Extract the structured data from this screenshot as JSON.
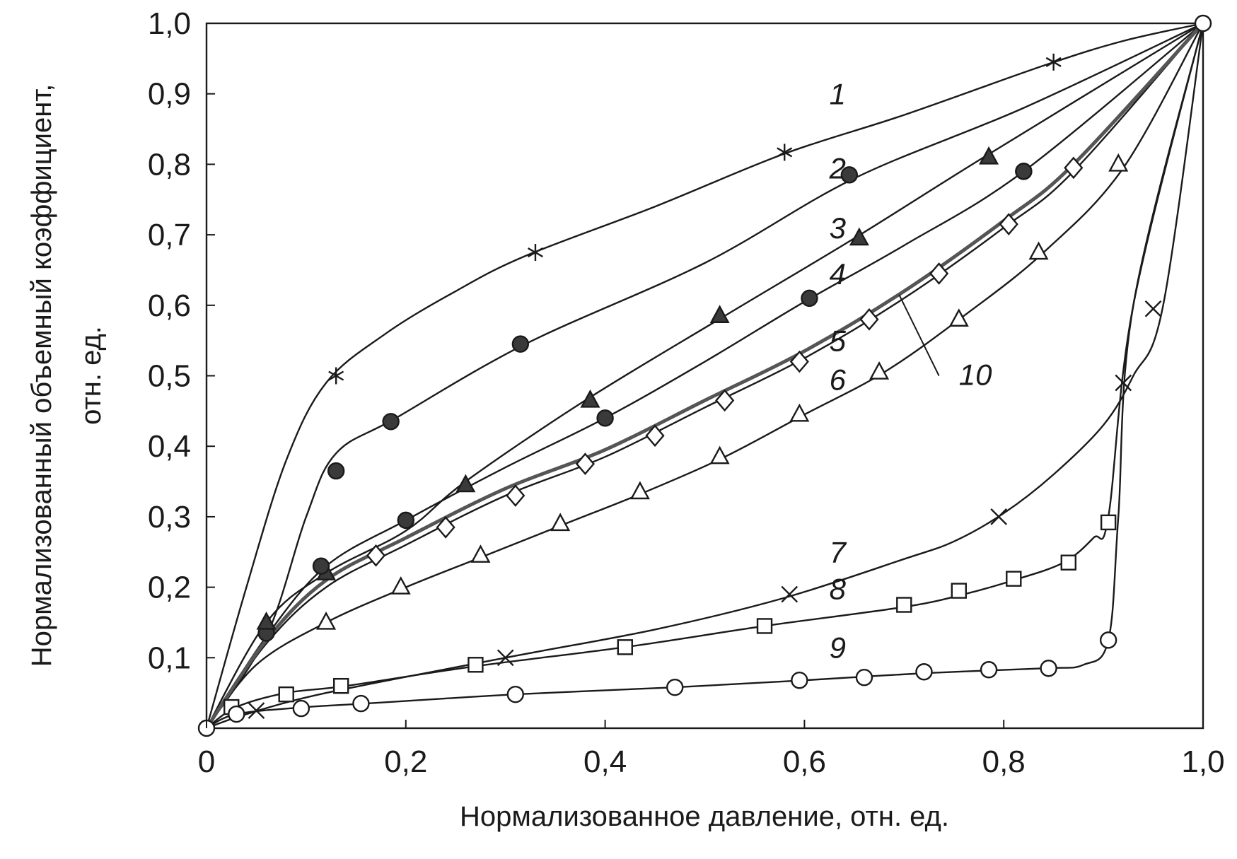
{
  "chart_data": {
    "type": "line",
    "title": "",
    "xlabel": "Нормализованное давление, отн. ед.",
    "ylabel": [
      "Нормализованный объемный коэффициент,",
      "отн. ед."
    ],
    "xlim": [
      0,
      1.0
    ],
    "ylim": [
      0,
      1.0
    ],
    "x_ticks": [
      {
        "value": 0,
        "label": "0"
      },
      {
        "value": 0.2,
        "label": "0,2"
      },
      {
        "value": 0.4,
        "label": "0,4"
      },
      {
        "value": 0.6,
        "label": "0,6"
      },
      {
        "value": 0.8,
        "label": "0,8"
      },
      {
        "value": 1.0,
        "label": "1,0"
      }
    ],
    "y_ticks": [
      {
        "value": 0.1,
        "label": "0,1"
      },
      {
        "value": 0.2,
        "label": "0,2"
      },
      {
        "value": 0.3,
        "label": "0,3"
      },
      {
        "value": 0.4,
        "label": "0,4"
      },
      {
        "value": 0.5,
        "label": "0,5"
      },
      {
        "value": 0.6,
        "label": "0,6"
      },
      {
        "value": 0.7,
        "label": "0,7"
      },
      {
        "value": 0.8,
        "label": "0,8"
      },
      {
        "value": 0.9,
        "label": "0,9"
      },
      {
        "value": 1.0,
        "label": "1,0"
      }
    ],
    "grid": false,
    "legend": "none",
    "series": [
      {
        "label": "1",
        "marker": "asterisk",
        "label_at": [
          0.625,
          0.885
        ],
        "curve": [
          [
            0,
            0
          ],
          [
            0.04,
            0.2
          ],
          [
            0.08,
            0.38
          ],
          [
            0.12,
            0.49
          ],
          [
            0.18,
            0.56
          ],
          [
            0.25,
            0.62
          ],
          [
            0.32,
            0.67
          ],
          [
            0.45,
            0.74
          ],
          [
            0.58,
            0.815
          ],
          [
            0.7,
            0.87
          ],
          [
            0.84,
            0.94
          ],
          [
            0.92,
            0.975
          ],
          [
            1,
            1
          ]
        ],
        "markers": [
          [
            0.13,
            0.5
          ],
          [
            0.33,
            0.675
          ],
          [
            0.58,
            0.817
          ],
          [
            0.85,
            0.945
          ]
        ]
      },
      {
        "label": "2",
        "marker": "filled-circle",
        "label_at": [
          0.625,
          0.78
        ],
        "curve": [
          [
            0,
            0
          ],
          [
            0.06,
            0.13
          ],
          [
            0.1,
            0.3
          ],
          [
            0.13,
            0.39
          ],
          [
            0.19,
            0.44
          ],
          [
            0.32,
            0.545
          ],
          [
            0.5,
            0.66
          ],
          [
            0.65,
            0.78
          ],
          [
            0.82,
            0.88
          ],
          [
            1,
            1
          ]
        ],
        "markers": [
          [
            0.06,
            0.135
          ],
          [
            0.13,
            0.365
          ],
          [
            0.185,
            0.435
          ],
          [
            0.315,
            0.545
          ],
          [
            0.645,
            0.785
          ],
          [
            0.82,
            0.79
          ]
        ]
      },
      {
        "label": "3",
        "marker": "filled-triangle",
        "label_at": [
          0.625,
          0.695
        ],
        "curve": [
          [
            0,
            0
          ],
          [
            0.06,
            0.15
          ],
          [
            0.12,
            0.22
          ],
          [
            0.2,
            0.28
          ],
          [
            0.26,
            0.35
          ],
          [
            0.38,
            0.465
          ],
          [
            0.52,
            0.585
          ],
          [
            0.65,
            0.695
          ],
          [
            0.78,
            0.81
          ],
          [
            1,
            1
          ]
        ],
        "markers": [
          [
            0.06,
            0.15
          ],
          [
            0.12,
            0.22
          ],
          [
            0.26,
            0.345
          ],
          [
            0.385,
            0.465
          ],
          [
            0.515,
            0.585
          ],
          [
            0.655,
            0.695
          ],
          [
            0.785,
            0.81
          ]
        ]
      },
      {
        "label": "4",
        "marker": "filled-circle",
        "label_at": [
          0.625,
          0.63
        ],
        "curve": [
          [
            0,
            0
          ],
          [
            0.06,
            0.13
          ],
          [
            0.12,
            0.23
          ],
          [
            0.2,
            0.295
          ],
          [
            0.3,
            0.37
          ],
          [
            0.4,
            0.44
          ],
          [
            0.5,
            0.52
          ],
          [
            0.6,
            0.605
          ],
          [
            0.7,
            0.685
          ],
          [
            0.82,
            0.79
          ],
          [
            1,
            1
          ]
        ],
        "markers": [
          [
            0.115,
            0.23
          ],
          [
            0.2,
            0.295
          ],
          [
            0.4,
            0.44
          ],
          [
            0.605,
            0.61
          ],
          [
            0.82,
            0.79
          ]
        ]
      },
      {
        "label": "5",
        "marker": "open-diamond",
        "label_at": [
          0.625,
          0.535
        ],
        "curve": [
          [
            0,
            0
          ],
          [
            0.06,
            0.12
          ],
          [
            0.12,
            0.2
          ],
          [
            0.2,
            0.26
          ],
          [
            0.3,
            0.33
          ],
          [
            0.4,
            0.385
          ],
          [
            0.5,
            0.455
          ],
          [
            0.6,
            0.525
          ],
          [
            0.7,
            0.61
          ],
          [
            0.8,
            0.71
          ],
          [
            0.87,
            0.79
          ],
          [
            1,
            1
          ]
        ],
        "markers": [
          [
            0.17,
            0.245
          ],
          [
            0.24,
            0.285
          ],
          [
            0.31,
            0.33
          ],
          [
            0.38,
            0.375
          ],
          [
            0.45,
            0.415
          ],
          [
            0.52,
            0.465
          ],
          [
            0.595,
            0.52
          ],
          [
            0.665,
            0.58
          ],
          [
            0.735,
            0.645
          ],
          [
            0.805,
            0.715
          ],
          [
            0.87,
            0.795
          ]
        ]
      },
      {
        "label": "6",
        "marker": "open-triangle",
        "label_at": [
          0.625,
          0.48
        ],
        "curve": [
          [
            0,
            0
          ],
          [
            0.05,
            0.09
          ],
          [
            0.12,
            0.15
          ],
          [
            0.2,
            0.2
          ],
          [
            0.28,
            0.245
          ],
          [
            0.36,
            0.29
          ],
          [
            0.44,
            0.335
          ],
          [
            0.52,
            0.385
          ],
          [
            0.6,
            0.445
          ],
          [
            0.68,
            0.505
          ],
          [
            0.76,
            0.585
          ],
          [
            0.84,
            0.675
          ],
          [
            0.92,
            0.795
          ],
          [
            1,
            1
          ]
        ],
        "markers": [
          [
            0.12,
            0.15
          ],
          [
            0.195,
            0.2
          ],
          [
            0.275,
            0.245
          ],
          [
            0.355,
            0.29
          ],
          [
            0.435,
            0.335
          ],
          [
            0.515,
            0.385
          ],
          [
            0.595,
            0.445
          ],
          [
            0.675,
            0.505
          ],
          [
            0.755,
            0.58
          ],
          [
            0.835,
            0.675
          ],
          [
            0.915,
            0.8
          ]
        ]
      },
      {
        "label": "7",
        "marker": "cross",
        "label_at": [
          0.625,
          0.235
        ],
        "curve": [
          [
            0,
            0
          ],
          [
            0.04,
            0.02
          ],
          [
            0.12,
            0.05
          ],
          [
            0.3,
            0.1
          ],
          [
            0.45,
            0.14
          ],
          [
            0.58,
            0.185
          ],
          [
            0.7,
            0.24
          ],
          [
            0.75,
            0.265
          ],
          [
            0.8,
            0.305
          ],
          [
            0.85,
            0.36
          ],
          [
            0.9,
            0.43
          ],
          [
            0.93,
            0.5
          ],
          [
            0.96,
            0.6
          ],
          [
            1,
            1
          ]
        ],
        "markers": [
          [
            0.05,
            0.025
          ],
          [
            0.3,
            0.1
          ],
          [
            0.585,
            0.19
          ],
          [
            0.795,
            0.3
          ],
          [
            0.92,
            0.49
          ],
          [
            0.95,
            0.595
          ]
        ]
      },
      {
        "label": "8",
        "marker": "open-square",
        "label_at": [
          0.625,
          0.183
        ],
        "curve": [
          [
            0,
            0
          ],
          [
            0.03,
            0.03
          ],
          [
            0.08,
            0.05
          ],
          [
            0.14,
            0.06
          ],
          [
            0.27,
            0.088
          ],
          [
            0.42,
            0.115
          ],
          [
            0.56,
            0.145
          ],
          [
            0.7,
            0.172
          ],
          [
            0.76,
            0.19
          ],
          [
            0.81,
            0.21
          ],
          [
            0.86,
            0.235
          ],
          [
            0.89,
            0.27
          ],
          [
            0.905,
            0.3
          ],
          [
            0.93,
            0.6
          ],
          [
            1,
            1
          ]
        ],
        "markers": [
          [
            0.025,
            0.03
          ],
          [
            0.08,
            0.048
          ],
          [
            0.135,
            0.06
          ],
          [
            0.27,
            0.09
          ],
          [
            0.42,
            0.115
          ],
          [
            0.56,
            0.145
          ],
          [
            0.7,
            0.175
          ],
          [
            0.755,
            0.195
          ],
          [
            0.81,
            0.212
          ],
          [
            0.865,
            0.235
          ],
          [
            0.905,
            0.292
          ]
        ]
      },
      {
        "label": "9",
        "marker": "open-circle",
        "label_at": [
          0.625,
          0.1
        ],
        "curve": [
          [
            0,
            0
          ],
          [
            0.03,
            0.02
          ],
          [
            0.1,
            0.03
          ],
          [
            0.16,
            0.035
          ],
          [
            0.31,
            0.048
          ],
          [
            0.47,
            0.058
          ],
          [
            0.6,
            0.068
          ],
          [
            0.72,
            0.078
          ],
          [
            0.84,
            0.085
          ],
          [
            0.88,
            0.09
          ],
          [
            0.905,
            0.125
          ],
          [
            0.915,
            0.3
          ],
          [
            0.93,
            0.6
          ],
          [
            1,
            1
          ]
        ],
        "markers": [
          [
            0.03,
            0.02
          ],
          [
            0.095,
            0.028
          ],
          [
            0.155,
            0.035
          ],
          [
            0.31,
            0.048
          ],
          [
            0.47,
            0.058
          ],
          [
            0.595,
            0.068
          ],
          [
            0.66,
            0.072
          ],
          [
            0.72,
            0.08
          ],
          [
            0.785,
            0.083
          ],
          [
            0.845,
            0.085
          ],
          [
            0.905,
            0.125
          ]
        ]
      },
      {
        "label": "10",
        "marker": "none",
        "thick": true,
        "label_at": [
          0.755,
          0.487
        ],
        "leader": [
          [
            0.735,
            0.5
          ],
          [
            0.695,
            0.615
          ]
        ],
        "curve": [
          [
            0,
            0
          ],
          [
            0.06,
            0.125
          ],
          [
            0.12,
            0.21
          ],
          [
            0.2,
            0.27
          ],
          [
            0.3,
            0.34
          ],
          [
            0.4,
            0.395
          ],
          [
            0.5,
            0.465
          ],
          [
            0.6,
            0.535
          ],
          [
            0.7,
            0.62
          ],
          [
            0.8,
            0.72
          ],
          [
            0.87,
            0.8
          ],
          [
            1,
            1
          ]
        ],
        "markers": []
      }
    ],
    "shared_points": [
      [
        0,
        0
      ],
      [
        1,
        1
      ]
    ]
  }
}
